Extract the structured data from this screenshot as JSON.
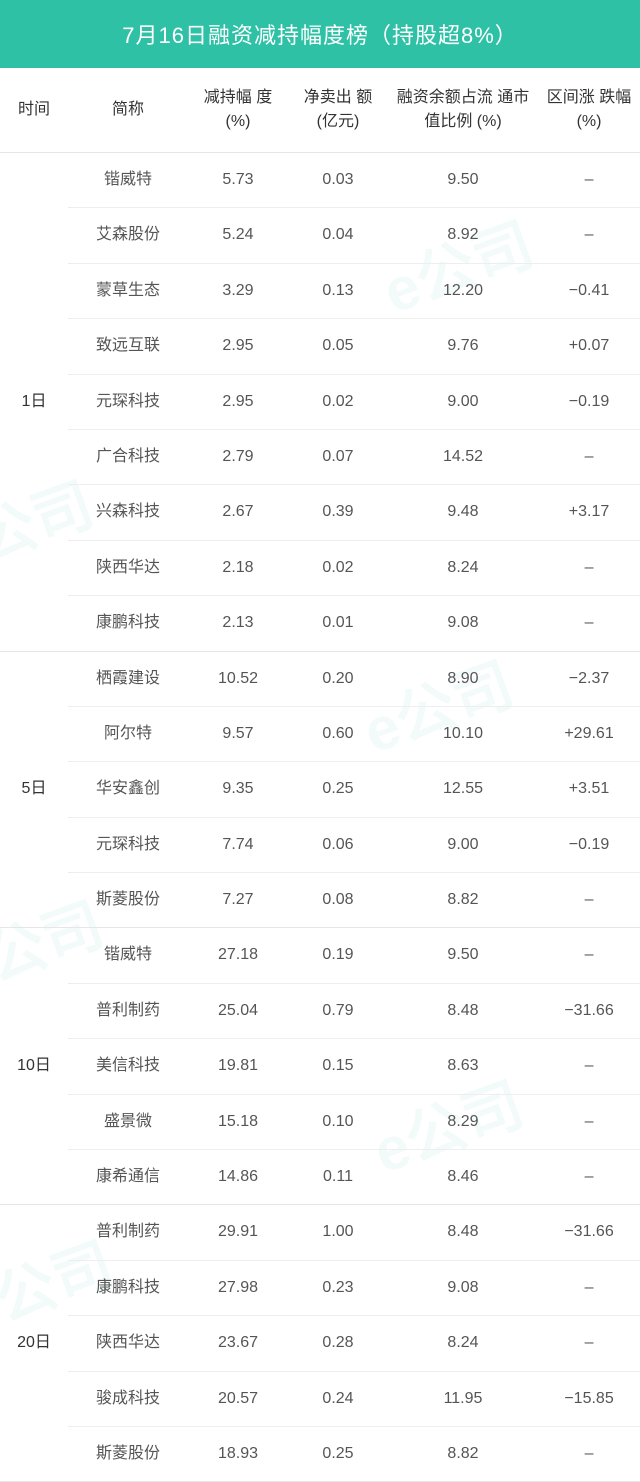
{
  "title": "7月16日融资减持幅度榜（持股超8%）",
  "colors": {
    "header_bg": "#2ec1a6",
    "header_text": "#ffffff",
    "row_border": "#eeeeee",
    "group_border": "#e6e6e6",
    "cell_text": "#555555",
    "watermark": "rgba(46,193,166,0.06)"
  },
  "columns": [
    {
      "label": "时间"
    },
    {
      "label": "简称"
    },
    {
      "label": "减持幅\n度(%)"
    },
    {
      "label": "净卖出\n额(亿元)"
    },
    {
      "label": "融资余额占流\n通市值比例\n(%)"
    },
    {
      "label": "区间涨\n跌幅\n(%)"
    }
  ],
  "groups": [
    {
      "time": "1日",
      "rows": [
        {
          "name": "锴威特",
          "pct": "5.73",
          "amt": "0.03",
          "ratio": "9.50",
          "chg": "–"
        },
        {
          "name": "艾森股份",
          "pct": "5.24",
          "amt": "0.04",
          "ratio": "8.92",
          "chg": "–"
        },
        {
          "name": "蒙草生态",
          "pct": "3.29",
          "amt": "0.13",
          "ratio": "12.20",
          "chg": "−0.41"
        },
        {
          "name": "致远互联",
          "pct": "2.95",
          "amt": "0.05",
          "ratio": "9.76",
          "chg": "+0.07"
        },
        {
          "name": "元琛科技",
          "pct": "2.95",
          "amt": "0.02",
          "ratio": "9.00",
          "chg": "−0.19"
        },
        {
          "name": "广合科技",
          "pct": "2.79",
          "amt": "0.07",
          "ratio": "14.52",
          "chg": "–"
        },
        {
          "name": "兴森科技",
          "pct": "2.67",
          "amt": "0.39",
          "ratio": "9.48",
          "chg": "+3.17"
        },
        {
          "name": "陕西华达",
          "pct": "2.18",
          "amt": "0.02",
          "ratio": "8.24",
          "chg": "–"
        },
        {
          "name": "康鹏科技",
          "pct": "2.13",
          "amt": "0.01",
          "ratio": "9.08",
          "chg": "–"
        }
      ]
    },
    {
      "time": "5日",
      "rows": [
        {
          "name": "栖霞建设",
          "pct": "10.52",
          "amt": "0.20",
          "ratio": "8.90",
          "chg": "−2.37"
        },
        {
          "name": "阿尔特",
          "pct": "9.57",
          "amt": "0.60",
          "ratio": "10.10",
          "chg": "+29.61"
        },
        {
          "name": "华安鑫创",
          "pct": "9.35",
          "amt": "0.25",
          "ratio": "12.55",
          "chg": "+3.51"
        },
        {
          "name": "元琛科技",
          "pct": "7.74",
          "amt": "0.06",
          "ratio": "9.00",
          "chg": "−0.19"
        },
        {
          "name": "斯菱股份",
          "pct": "7.27",
          "amt": "0.08",
          "ratio": "8.82",
          "chg": "–"
        }
      ]
    },
    {
      "time": "10日",
      "rows": [
        {
          "name": "锴威特",
          "pct": "27.18",
          "amt": "0.19",
          "ratio": "9.50",
          "chg": "–"
        },
        {
          "name": "普利制药",
          "pct": "25.04",
          "amt": "0.79",
          "ratio": "8.48",
          "chg": "−31.66"
        },
        {
          "name": "美信科技",
          "pct": "19.81",
          "amt": "0.15",
          "ratio": "8.63",
          "chg": "–"
        },
        {
          "name": "盛景微",
          "pct": "15.18",
          "amt": "0.10",
          "ratio": "8.29",
          "chg": "–"
        },
        {
          "name": "康希通信",
          "pct": "14.86",
          "amt": "0.11",
          "ratio": "8.46",
          "chg": "–"
        }
      ]
    },
    {
      "time": "20日",
      "rows": [
        {
          "name": "普利制药",
          "pct": "29.91",
          "amt": "1.00",
          "ratio": "8.48",
          "chg": "−31.66"
        },
        {
          "name": "康鹏科技",
          "pct": "27.98",
          "amt": "0.23",
          "ratio": "9.08",
          "chg": "–"
        },
        {
          "name": "陕西华达",
          "pct": "23.67",
          "amt": "0.28",
          "ratio": "8.24",
          "chg": "–"
        },
        {
          "name": "骏成科技",
          "pct": "20.57",
          "amt": "0.24",
          "ratio": "11.95",
          "chg": "−15.85"
        },
        {
          "name": "斯菱股份",
          "pct": "18.93",
          "amt": "0.25",
          "ratio": "8.82",
          "chg": "–"
        }
      ]
    }
  ],
  "watermark_text": "e公司"
}
